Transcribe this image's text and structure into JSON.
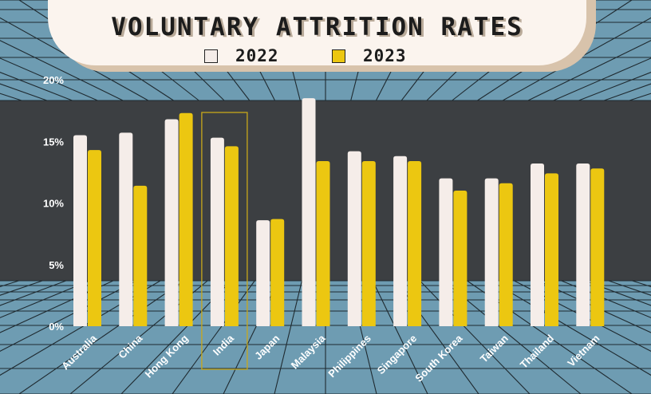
{
  "chart_data": {
    "type": "bar",
    "title": "VOLUNTARY ATTRITION RATES",
    "categories": [
      "Australia",
      "China",
      "Hong Kong",
      "India",
      "Japan",
      "Malaysia",
      "Philippines",
      "Singapore",
      "South Korea",
      "Taiwan",
      "Thailand",
      "Vietnam"
    ],
    "series": [
      {
        "name": "2022",
        "color": "#f5ede9",
        "values": [
          15.5,
          15.7,
          16.8,
          15.3,
          8.6,
          18.5,
          14.2,
          13.8,
          12.0,
          12.0,
          13.2,
          13.2
        ]
      },
      {
        "name": "2023",
        "color": "#ecc711",
        "values": [
          14.3,
          11.4,
          17.3,
          14.6,
          8.7,
          13.4,
          13.4,
          13.4,
          11.0,
          11.6,
          12.4,
          12.8
        ]
      }
    ],
    "yticks": [
      "0%",
      "5%",
      "10%",
      "15%",
      "20%"
    ],
    "ylim": [
      0,
      20
    ],
    "highlight": "India",
    "colors": {
      "panel": "#3c3f42",
      "grid_bg": "#6e9cb2",
      "grid_line": "#1f2a30",
      "highlight": "#c8a81a",
      "tick_text": "#ffffff"
    }
  }
}
